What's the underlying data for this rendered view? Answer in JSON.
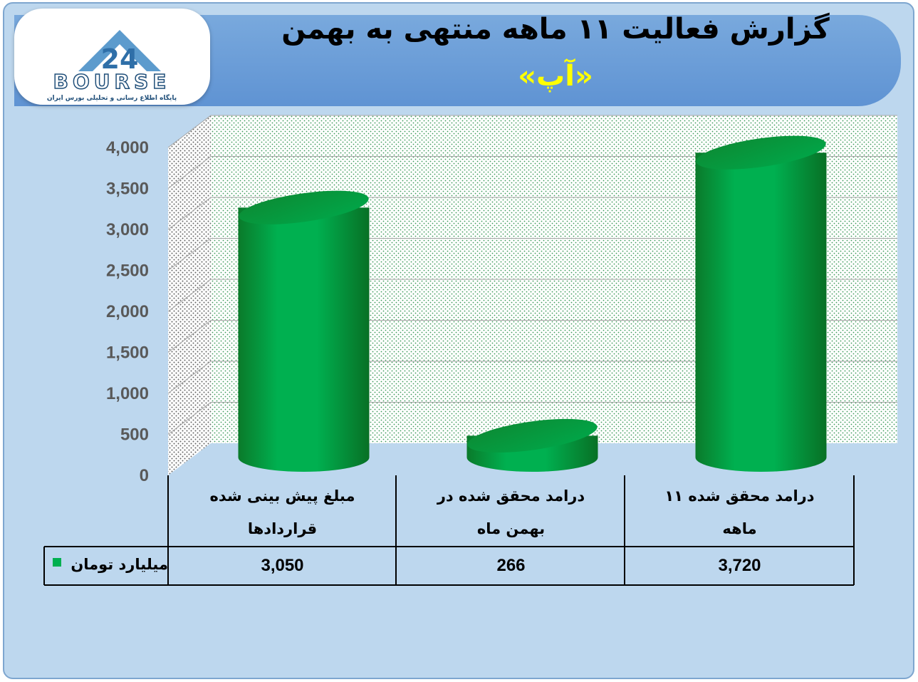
{
  "header": {
    "title_line1": "گزارش فعالیت ۱۱ ماهه منتهی به بهمن",
    "title_line2": "«آپ»"
  },
  "logo": {
    "wordmark": "BOURSE",
    "number": "24",
    "subtitle": "پایگاه اطلاع رسانی و تحلیلی بورس ایران"
  },
  "colors": {
    "frame_bg": "#bdd7ee",
    "banner": "#5f93d3",
    "bar": "#00b050",
    "bar_dark": "#0a7a2a",
    "title_accent": "#ffff00"
  },
  "chart_data": {
    "type": "bar",
    "style": "3d-cylinder",
    "categories": [
      "مبلغ پیش بینی شده قراردادها",
      "درامد محقق شده در بهمن ماه",
      "درامد محقق شده ۱۱ ماهه"
    ],
    "category_lines": [
      [
        "مبلغ پیش بینی شده",
        "قراردادها"
      ],
      [
        "درامد محقق شده در",
        "بهمن ماه"
      ],
      [
        "درامد محقق شده ۱۱",
        "ماهه"
      ]
    ],
    "series": [
      {
        "name": "میلیارد تومان",
        "values": [
          3050,
          266,
          3720
        ]
      }
    ],
    "value_labels": [
      "3,050",
      "266",
      "3,720"
    ],
    "ylim": [
      0,
      4000
    ],
    "yticks": [
      "0",
      "500",
      "1,000",
      "1,500",
      "2,000",
      "2,500",
      "3,000",
      "3,500",
      "4,000"
    ],
    "grid": true,
    "legend": "data-table"
  }
}
